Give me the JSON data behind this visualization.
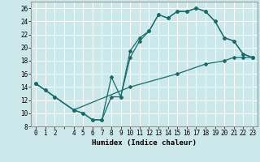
{
  "xlabel": "Humidex (Indice chaleur)",
  "bg_color": "#cce8ea",
  "grid_color": "#ffffff",
  "line_color": "#1a6b6b",
  "xlim": [
    -0.5,
    23.5
  ],
  "ylim": [
    8,
    27
  ],
  "yticks": [
    8,
    10,
    12,
    14,
    16,
    18,
    20,
    22,
    24,
    26
  ],
  "line1_x": [
    0,
    1,
    2,
    4,
    5,
    6,
    7,
    8,
    9,
    10,
    11,
    12,
    13,
    14,
    15,
    16,
    17,
    18,
    19,
    20,
    21,
    22,
    23
  ],
  "line1_y": [
    14.5,
    13.5,
    12.5,
    10.5,
    10.0,
    9.0,
    9.0,
    15.5,
    12.5,
    19.5,
    21.5,
    22.5,
    25.0,
    24.5,
    25.5,
    25.5,
    26.0,
    25.5,
    24.0,
    21.5,
    21.0,
    19.0,
    18.5
  ],
  "line2_x": [
    0,
    1,
    2,
    4,
    5,
    6,
    7,
    8,
    9,
    10,
    11,
    12,
    13,
    14,
    15,
    16,
    17,
    18,
    19,
    20,
    21,
    22,
    23
  ],
  "line2_y": [
    14.5,
    13.5,
    12.5,
    10.5,
    10.0,
    9.0,
    9.0,
    12.5,
    12.5,
    18.5,
    21.0,
    22.5,
    25.0,
    24.5,
    25.5,
    25.5,
    26.0,
    25.5,
    24.0,
    21.5,
    21.0,
    19.0,
    18.5
  ],
  "line3_x": [
    0,
    4,
    10,
    15,
    18,
    20,
    21,
    22,
    23
  ],
  "line3_y": [
    14.5,
    10.5,
    14.0,
    16.0,
    17.5,
    18.0,
    18.5,
    18.5,
    18.5
  ]
}
